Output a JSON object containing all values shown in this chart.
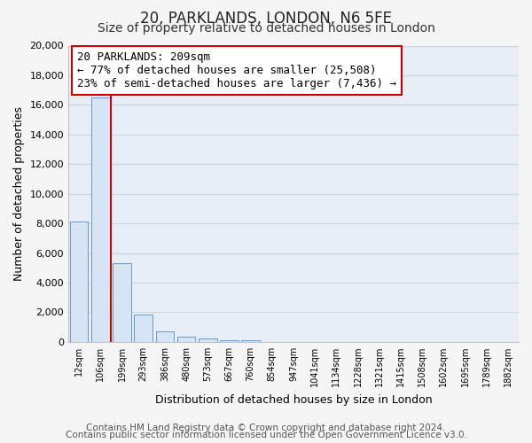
{
  "title": "20, PARKLANDS, LONDON, N6 5FE",
  "subtitle": "Size of property relative to detached houses in London",
  "xlabel": "Distribution of detached houses by size in London",
  "ylabel": "Number of detached properties",
  "bar_labels": [
    "12sqm",
    "106sqm",
    "199sqm",
    "293sqm",
    "386sqm",
    "480sqm",
    "573sqm",
    "667sqm",
    "760sqm",
    "854sqm",
    "947sqm",
    "1041sqm",
    "1134sqm",
    "1228sqm",
    "1321sqm",
    "1415sqm",
    "1508sqm",
    "1602sqm",
    "1695sqm",
    "1789sqm",
    "1882sqm"
  ],
  "bar_values": [
    8100,
    16500,
    5300,
    1850,
    700,
    350,
    200,
    130,
    100,
    0,
    0,
    0,
    0,
    0,
    0,
    0,
    0,
    0,
    0,
    0,
    0
  ],
  "bar_color": "#d6e4f5",
  "bar_edge_color": "#6699cc",
  "ylim": [
    0,
    20000
  ],
  "yticks": [
    0,
    2000,
    4000,
    6000,
    8000,
    10000,
    12000,
    14000,
    16000,
    18000,
    20000
  ],
  "property_line_color": "#cc0000",
  "annotation_title": "20 PARKLANDS: 209sqm",
  "annotation_line1": "← 77% of detached houses are smaller (25,508)",
  "annotation_line2": "23% of semi-detached houses are larger (7,436) →",
  "annotation_box_color": "#ffffff",
  "annotation_box_edge": "#cc0000",
  "footer1": "Contains HM Land Registry data © Crown copyright and database right 2024.",
  "footer2": "Contains public sector information licensed under the Open Government Licence v3.0.",
  "fig_bg_color": "#f5f5f5",
  "plot_bg_color": "#e8eef5",
  "grid_color": "#c8d4e0",
  "title_fontsize": 12,
  "subtitle_fontsize": 10,
  "axis_label_fontsize": 9,
  "tick_fontsize": 8,
  "footer_fontsize": 7.5,
  "ann_fontsize": 9
}
